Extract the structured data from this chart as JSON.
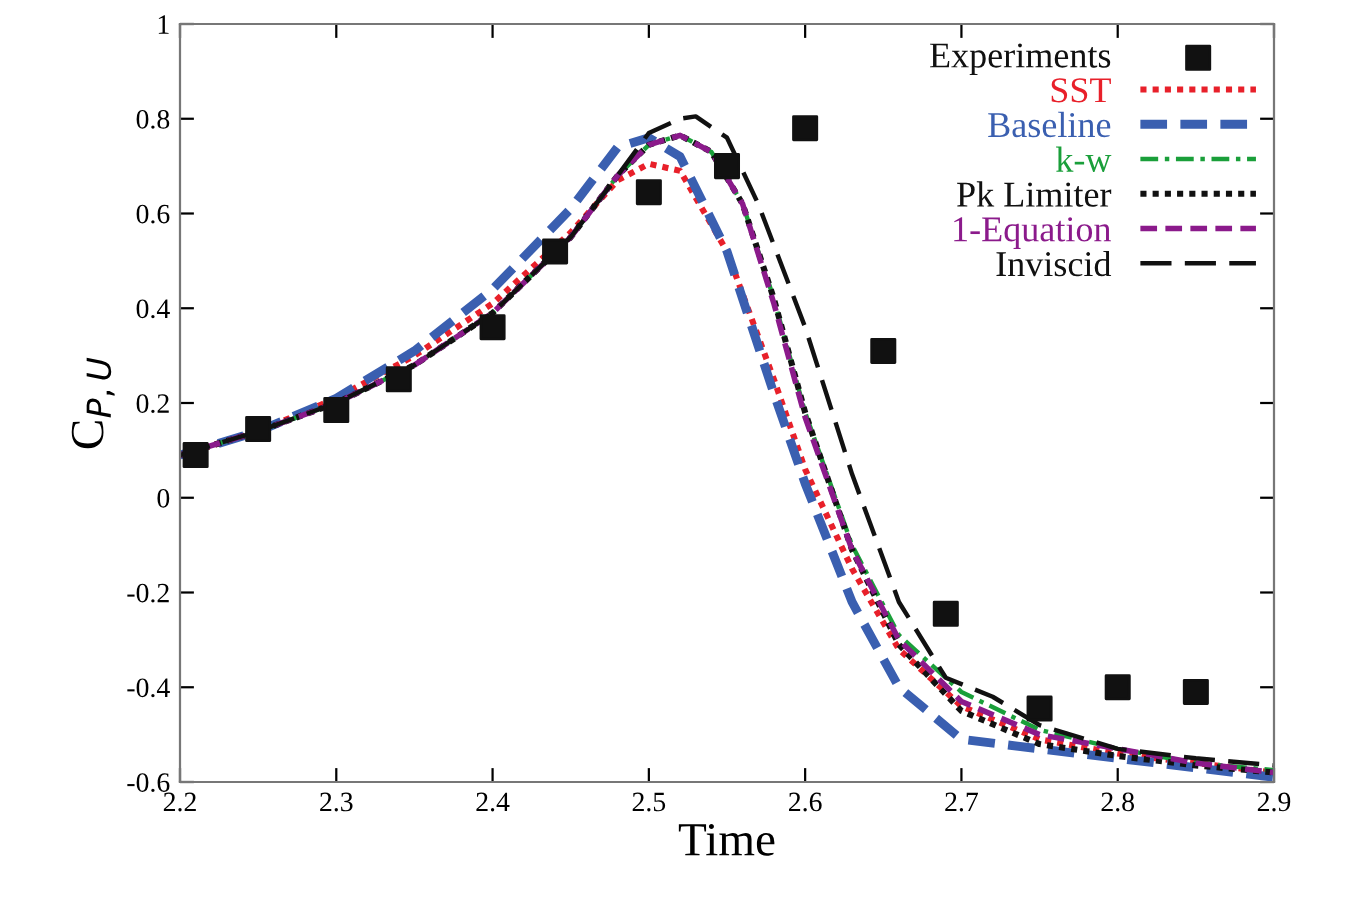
{
  "chart_data": {
    "type": "line",
    "xlabel": "Time",
    "ylabel": "C$_{P,U}$",
    "xlim": [
      2.2,
      2.9
    ],
    "ylim": [
      -0.6,
      1
    ],
    "xticks": [
      2.2,
      2.3,
      2.4,
      2.5,
      2.6,
      2.7,
      2.8,
      2.9
    ],
    "yticks": [
      -0.6,
      -0.4,
      -0.2,
      0,
      0.2,
      0.4,
      0.6,
      0.8,
      1
    ],
    "grid": false,
    "legend": "top right",
    "series": [
      {
        "name": "Experiments",
        "type": "scatter",
        "marker": "square",
        "color": "#111111",
        "x": [
          2.21,
          2.25,
          2.3,
          2.34,
          2.4,
          2.44,
          2.5,
          2.55,
          2.6,
          2.65,
          2.69,
          2.75,
          2.8,
          2.85
        ],
        "values": [
          0.09,
          0.145,
          0.185,
          0.25,
          0.36,
          0.52,
          0.645,
          0.7,
          0.78,
          0.31,
          -0.245,
          -0.445,
          -0.4,
          -0.41
        ]
      },
      {
        "name": "SST",
        "line_style": "dotted",
        "color": "#e8202a",
        "x": [
          2.2,
          2.25,
          2.3,
          2.35,
          2.4,
          2.45,
          2.48,
          2.5,
          2.52,
          2.55,
          2.58,
          2.6,
          2.63,
          2.66,
          2.7,
          2.75,
          2.8,
          2.85,
          2.9
        ],
        "values": [
          0.09,
          0.14,
          0.21,
          0.3,
          0.41,
          0.56,
          0.67,
          0.705,
          0.69,
          0.52,
          0.25,
          0.06,
          -0.15,
          -0.32,
          -0.44,
          -0.51,
          -0.54,
          -0.56,
          -0.58
        ]
      },
      {
        "name": "Baseline",
        "line_style": "dashed",
        "color": "#3a5fb0",
        "x": [
          2.2,
          2.25,
          2.3,
          2.35,
          2.4,
          2.45,
          2.48,
          2.5,
          2.52,
          2.55,
          2.58,
          2.6,
          2.63,
          2.66,
          2.7,
          2.75,
          2.8,
          2.85,
          2.9
        ],
        "values": [
          0.09,
          0.14,
          0.21,
          0.31,
          0.44,
          0.61,
          0.74,
          0.76,
          0.72,
          0.52,
          0.22,
          0.03,
          -0.22,
          -0.4,
          -0.51,
          -0.53,
          -0.55,
          -0.57,
          -0.59
        ]
      },
      {
        "name": "k-w",
        "line_style": "dashdot",
        "color": "#1a9f3a",
        "x": [
          2.2,
          2.25,
          2.3,
          2.35,
          2.4,
          2.45,
          2.48,
          2.5,
          2.52,
          2.54,
          2.56,
          2.58,
          2.6,
          2.63,
          2.66,
          2.7,
          2.75,
          2.8,
          2.85,
          2.9
        ],
        "values": [
          0.09,
          0.14,
          0.2,
          0.28,
          0.39,
          0.55,
          0.68,
          0.745,
          0.765,
          0.73,
          0.62,
          0.42,
          0.18,
          -0.1,
          -0.29,
          -0.41,
          -0.49,
          -0.53,
          -0.56,
          -0.575
        ]
      },
      {
        "name": "Pk Limiter",
        "line_style": "dotted",
        "color": "#111111",
        "x": [
          2.2,
          2.25,
          2.3,
          2.35,
          2.4,
          2.45,
          2.48,
          2.5,
          2.52,
          2.54,
          2.56,
          2.58,
          2.6,
          2.63,
          2.66,
          2.7,
          2.75,
          2.8,
          2.85,
          2.9
        ],
        "values": [
          0.09,
          0.14,
          0.2,
          0.28,
          0.39,
          0.55,
          0.68,
          0.745,
          0.765,
          0.73,
          0.62,
          0.42,
          0.18,
          -0.11,
          -0.31,
          -0.45,
          -0.52,
          -0.545,
          -0.565,
          -0.58
        ]
      },
      {
        "name": "1-Equation",
        "line_style": "dashed",
        "color": "#8b1a8b",
        "x": [
          2.2,
          2.25,
          2.3,
          2.35,
          2.4,
          2.45,
          2.48,
          2.5,
          2.52,
          2.54,
          2.56,
          2.58,
          2.6,
          2.63,
          2.66,
          2.7,
          2.75,
          2.8,
          2.85,
          2.9
        ],
        "values": [
          0.09,
          0.14,
          0.2,
          0.28,
          0.39,
          0.55,
          0.68,
          0.745,
          0.765,
          0.73,
          0.62,
          0.41,
          0.17,
          -0.11,
          -0.3,
          -0.43,
          -0.5,
          -0.53,
          -0.56,
          -0.58
        ]
      },
      {
        "name": "Inviscid",
        "line_style": "longdash",
        "color": "#111111",
        "x": [
          2.2,
          2.25,
          2.3,
          2.35,
          2.4,
          2.45,
          2.48,
          2.5,
          2.52,
          2.53,
          2.55,
          2.57,
          2.6,
          2.63,
          2.66,
          2.69,
          2.72,
          2.75,
          2.8,
          2.85,
          2.9
        ],
        "values": [
          0.09,
          0.14,
          0.2,
          0.28,
          0.39,
          0.55,
          0.68,
          0.77,
          0.8,
          0.805,
          0.76,
          0.62,
          0.36,
          0.05,
          -0.22,
          -0.38,
          -0.42,
          -0.48,
          -0.53,
          -0.55,
          -0.565
        ]
      }
    ]
  }
}
